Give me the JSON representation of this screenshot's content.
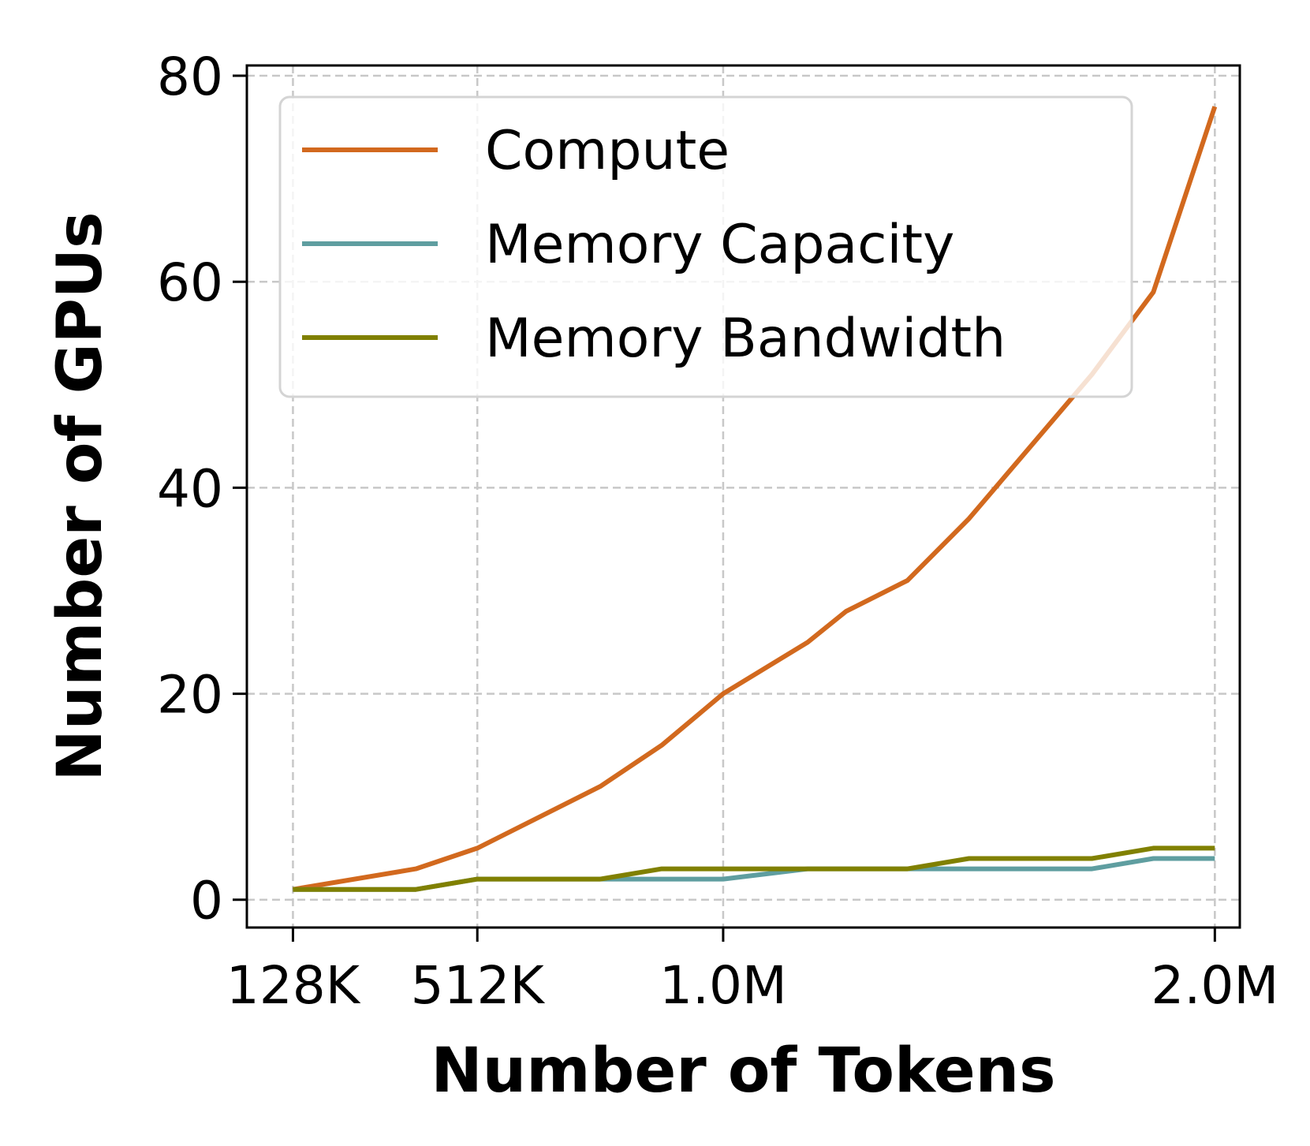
{
  "chart_data": {
    "type": "line",
    "xlabel": "Number of Tokens",
    "ylabel": "Number of GPUs",
    "xlim": [
      32000,
      2100000
    ],
    "ylim": [
      -2.7,
      81
    ],
    "x_ticks": [
      {
        "value": 128000,
        "label": "128K"
      },
      {
        "value": 512000,
        "label": "512K"
      },
      {
        "value": 1024000,
        "label": "1.0M"
      },
      {
        "value": 2048000,
        "label": "2.0M"
      }
    ],
    "y_ticks": [
      {
        "value": 0,
        "label": "0"
      },
      {
        "value": 20,
        "label": "20"
      },
      {
        "value": 40,
        "label": "40"
      },
      {
        "value": 60,
        "label": "60"
      },
      {
        "value": 80,
        "label": "80"
      }
    ],
    "grid": true,
    "legend_position": "top-left",
    "x": [
      128000,
      384000,
      512000,
      768000,
      896000,
      1024000,
      1200000,
      1280000,
      1408000,
      1536000,
      1792000,
      1920000,
      2048000
    ],
    "series": [
      {
        "name": "Compute",
        "color": "#d2691e",
        "values": [
          1,
          3,
          5,
          11,
          15,
          20,
          25,
          28,
          31,
          37,
          51,
          59,
          77
        ]
      },
      {
        "name": "Memory Capacity",
        "color": "#5f9ea0",
        "values": [
          1,
          1,
          2,
          2,
          2,
          2,
          3,
          3,
          3,
          3,
          3,
          4,
          4
        ]
      },
      {
        "name": "Memory Bandwidth",
        "color": "#808000",
        "values": [
          1,
          1,
          2,
          2,
          3,
          3,
          3,
          3,
          3,
          4,
          4,
          5,
          5
        ]
      }
    ]
  }
}
